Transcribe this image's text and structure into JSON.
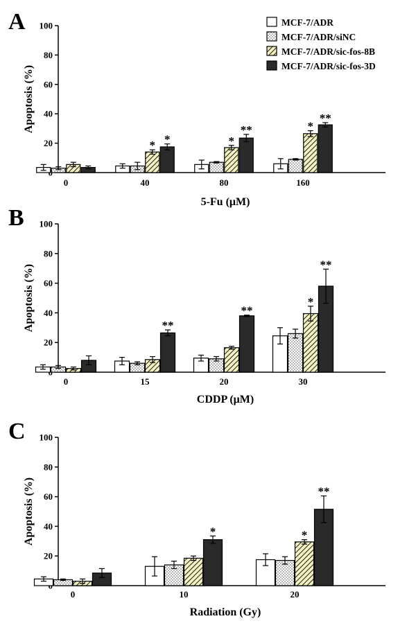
{
  "legend": {
    "entries": [
      {
        "label": "MCF-7/ADR",
        "pattern": "white"
      },
      {
        "label": "MCF-7/ADR/siNC",
        "pattern": "dots"
      },
      {
        "label": "MCF-7/ADR/sic-fos-8B",
        "pattern": "hatch"
      },
      {
        "label": "MCF-7/ADR/sic-fos-3D",
        "pattern": "solid"
      }
    ]
  },
  "colors": {
    "solid_bar": "#2a2a2a",
    "hatch_bg": "#f3f1bf",
    "axis": "#000000"
  },
  "chart_data": [
    {
      "type": "bar",
      "panel": "A",
      "categories": [
        "0",
        "40",
        "80",
        "160"
      ],
      "xlabel": "5-Fu (μM)",
      "ylabel": "Apoptosis (%)",
      "ylim": [
        0,
        100
      ],
      "yticks": [
        "0",
        "20",
        "40",
        "60",
        "80",
        "100"
      ],
      "series": [
        {
          "name": "MCF-7/ADR",
          "values": [
            3.5,
            4.5,
            5.5,
            6
          ],
          "errors": [
            2,
            1.5,
            3,
            3.5
          ]
        },
        {
          "name": "MCF-7/ADR/siNC",
          "values": [
            3,
            4.5,
            7,
            9
          ],
          "errors": [
            1,
            2.5,
            0.5,
            0.5
          ]
        },
        {
          "name": "MCF-7/ADR/sic-fos-8B",
          "values": [
            5.5,
            14,
            17,
            26.5
          ],
          "errors": [
            1.5,
            1.5,
            1.5,
            2
          ]
        },
        {
          "name": "MCF-7/ADR/sic-fos-3D",
          "values": [
            3.5,
            17.5,
            23.5,
            32.5
          ],
          "errors": [
            1,
            2,
            2.5,
            1.5
          ]
        }
      ],
      "significance": [
        {
          "category": 1,
          "series": 2,
          "mark": "*"
        },
        {
          "category": 1,
          "series": 3,
          "mark": "*"
        },
        {
          "category": 2,
          "series": 2,
          "mark": "*"
        },
        {
          "category": 2,
          "series": 3,
          "mark": "**"
        },
        {
          "category": 3,
          "series": 2,
          "mark": "*"
        },
        {
          "category": 3,
          "series": 3,
          "mark": "**"
        }
      ]
    },
    {
      "type": "bar",
      "panel": "B",
      "categories": [
        "0",
        "15",
        "20",
        "30"
      ],
      "xlabel": "CDDP (μM)",
      "ylabel": "Apoptosis (%)",
      "ylim": [
        0,
        100
      ],
      "yticks": [
        "0",
        "20",
        "40",
        "60",
        "80",
        "100"
      ],
      "series": [
        {
          "name": "MCF-7/ADR",
          "values": [
            3.5,
            7.5,
            9.5,
            24.5
          ],
          "errors": [
            1.5,
            2.5,
            2,
            5.5
          ]
        },
        {
          "name": "MCF-7/ADR/siNC",
          "values": [
            3.5,
            6,
            9,
            26
          ],
          "errors": [
            1,
            1,
            1.5,
            3
          ]
        },
        {
          "name": "MCF-7/ADR/sic-fos-8B",
          "values": [
            2.5,
            8.5,
            16.5,
            39.5
          ],
          "errors": [
            1,
            2,
            1,
            5
          ]
        },
        {
          "name": "MCF-7/ADR/sic-fos-3D",
          "values": [
            8,
            26.5,
            38,
            58
          ],
          "errors": [
            3,
            2,
            0.5,
            11.5
          ]
        }
      ],
      "significance": [
        {
          "category": 1,
          "series": 3,
          "mark": "**"
        },
        {
          "category": 2,
          "series": 3,
          "mark": "**"
        },
        {
          "category": 3,
          "series": 2,
          "mark": "*"
        },
        {
          "category": 3,
          "series": 3,
          "mark": "**"
        }
      ]
    },
    {
      "type": "bar",
      "panel": "C",
      "categories": [
        "0",
        "10",
        "20"
      ],
      "xlabel": "Radiation (Gy)",
      "ylabel": "Apoptosis (%)",
      "ylim": [
        0,
        100
      ],
      "yticks": [
        "0",
        "20",
        "40",
        "60",
        "80",
        "100"
      ],
      "series": [
        {
          "name": "MCF-7/ADR",
          "values": [
            4.5,
            13,
            17.5
          ],
          "errors": [
            1.5,
            6.5,
            4
          ]
        },
        {
          "name": "MCF-7/ADR/siNC",
          "values": [
            4,
            14,
            17
          ],
          "errors": [
            0.5,
            2.5,
            2.5
          ]
        },
        {
          "name": "MCF-7/ADR/sic-fos-8B",
          "values": [
            3,
            18.5,
            29.5
          ],
          "errors": [
            1.5,
            1.5,
            1.5
          ]
        },
        {
          "name": "MCF-7/ADR/sic-fos-3D",
          "values": [
            8.5,
            31,
            51.5
          ],
          "errors": [
            3,
            2.5,
            9
          ]
        }
      ],
      "significance": [
        {
          "category": 1,
          "series": 3,
          "mark": "*"
        },
        {
          "category": 2,
          "series": 2,
          "mark": "*"
        },
        {
          "category": 2,
          "series": 3,
          "mark": "**"
        }
      ]
    }
  ]
}
